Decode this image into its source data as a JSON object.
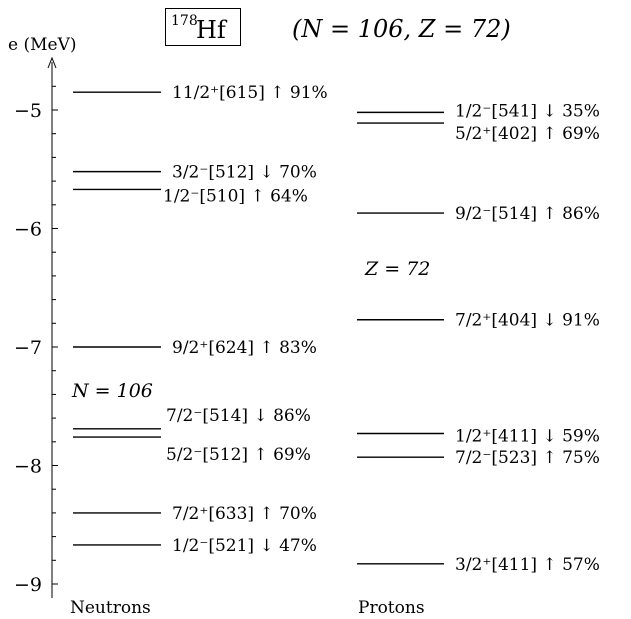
{
  "title": {
    "nucleus_mass": "178",
    "nucleus_symbol": "Hf",
    "nucleus_label": "178Hf",
    "quantum_numbers": "(N = 106, Z = 72)"
  },
  "axis": {
    "ylabel": "e (MeV)",
    "ylim": [
      -9.1,
      -4.62
    ],
    "ticks": [
      -5,
      -6,
      -7,
      -8,
      -9
    ],
    "tick_labels": [
      "−5",
      "−6",
      "−7",
      "−8",
      "−9"
    ],
    "minor_step": 0.2
  },
  "columns": {
    "neutrons_label": "Neutrons",
    "protons_label": "Protons"
  },
  "gap_labels": {
    "neutron_gap": "N = 106",
    "proton_gap": "Z = 72"
  },
  "chart_data": {
    "type": "level-scheme",
    "nucleus": "178Hf",
    "units": "MeV",
    "neutrons": [
      {
        "e": -4.85,
        "label": "11/2⁺[615] ↑ 91%"
      },
      {
        "e": -5.52,
        "label": "3/2⁻[512] ↓ 70%"
      },
      {
        "e": -5.67,
        "label": "1/2⁻[510] ↑ 64%"
      },
      {
        "e": -7.0,
        "label": "9/2⁺[624] ↑ 83%"
      },
      {
        "e": -7.69,
        "label": "7/2⁻[514] ↓ 86%"
      },
      {
        "e": -7.76,
        "label": "5/2⁻[512] ↑ 69%"
      },
      {
        "e": -8.4,
        "label": "7/2⁺[633] ↑ 70%"
      },
      {
        "e": -8.67,
        "label": "1/2⁻[521] ↓ 47%"
      }
    ],
    "protons": [
      {
        "e": -5.02,
        "label": "1/2⁻[541] ↓ 35%"
      },
      {
        "e": -5.11,
        "label": "5/2⁺[402] ↑ 69%"
      },
      {
        "e": -5.87,
        "label": "9/2⁻[514] ↑ 86%"
      },
      {
        "e": -6.77,
        "label": "7/2⁺[404] ↓ 91%"
      },
      {
        "e": -7.73,
        "label": "1/2⁺[411] ↓ 59%"
      },
      {
        "e": -7.93,
        "label": "7/2⁻[523] ↑ 75%"
      },
      {
        "e": -8.83,
        "label": "3/2⁺[411] ↑ 57%"
      }
    ]
  }
}
